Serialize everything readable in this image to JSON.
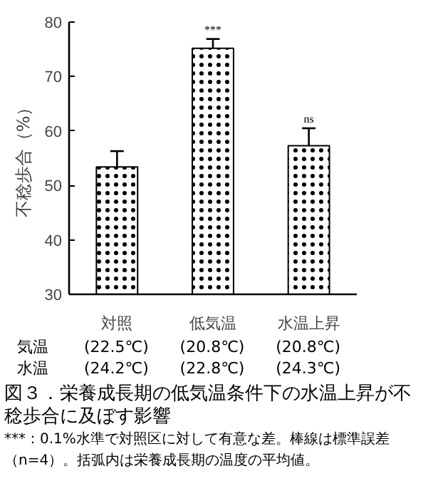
{
  "chart_data": {
    "type": "bar",
    "title": "図３．栄養成長期の低気温条件下の水温上昇が不稔歩合に及ぼす影響",
    "ylabel": "不稔歩合（%）",
    "categories": [
      "対照",
      "低気温",
      "水温上昇"
    ],
    "values": [
      53.4,
      75.2,
      57.3
    ],
    "errors": [
      [
        53.4,
        56.3
      ],
      [
        75.2,
        76.9
      ],
      [
        57.3,
        60.5
      ]
    ],
    "color": "#ffffff",
    "ylim": [
      30,
      80
    ],
    "yticks": [
      30,
      40,
      50,
      60,
      70,
      80
    ],
    "grid": false,
    "value_labels": [
      null,
      "***",
      "ns"
    ],
    "annotations": [
      "気温",
      "(22.5℃)",
      "(20.8℃)",
      "(20.8℃)",
      "水温",
      "(24.2℃)",
      "(22.8℃)",
      "(24.3℃)",
      "***：0.1%水準で対照区に対して有意な差。棒線は標準誤差（n=4）。括弧内は栄養成長期の温度の平均値。"
    ]
  }
}
